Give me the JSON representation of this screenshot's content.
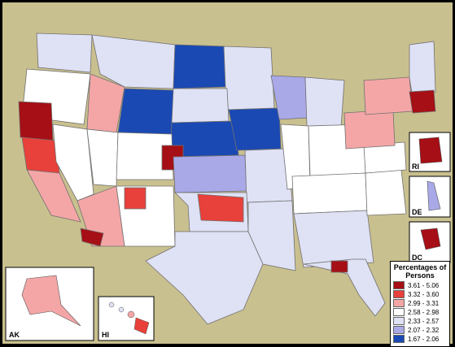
{
  "legend": {
    "title": "Percentages of Persons",
    "bins": [
      {
        "label": "3.61 - 5.06",
        "color": "#a50f15"
      },
      {
        "label": "3.32 - 3.60",
        "color": "#e8403a"
      },
      {
        "label": "2.99 - 3.31",
        "color": "#f4a6a6"
      },
      {
        "label": "2.58 - 2.98",
        "color": "#ffffff"
      },
      {
        "label": "2.33 - 2.57",
        "color": "#dfe1f5"
      },
      {
        "label": "2.07 - 2.32",
        "color": "#a9a9e8"
      },
      {
        "label": "1.67 - 2.06",
        "color": "#1a49b3"
      }
    ]
  },
  "insets": {
    "ak": "AK",
    "hi": "HI",
    "ri": "RI",
    "de": "DE",
    "dc": "DC"
  },
  "regions": [
    {
      "name": "oregon-west",
      "bin": 0
    },
    {
      "name": "california-north",
      "bin": 1
    },
    {
      "name": "california-coast",
      "bin": 2
    },
    {
      "name": "nevada",
      "bin": 3
    },
    {
      "name": "idaho",
      "bin": 2
    },
    {
      "name": "wyoming",
      "bin": 6
    },
    {
      "name": "colorado",
      "bin": 0
    },
    {
      "name": "north-dakota",
      "bin": 6
    },
    {
      "name": "iowa",
      "bin": 6
    },
    {
      "name": "oklahoma",
      "bin": 1
    },
    {
      "name": "texas",
      "bin": 4
    },
    {
      "name": "arizona",
      "bin": 2
    },
    {
      "name": "new-mexico",
      "bin": 3
    },
    {
      "name": "florida",
      "bin": 4
    },
    {
      "name": "new-york",
      "bin": 2
    },
    {
      "name": "massachusetts",
      "bin": 0
    }
  ]
}
